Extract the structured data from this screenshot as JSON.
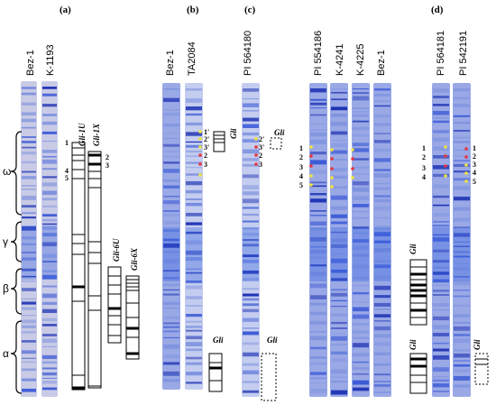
{
  "panels": {
    "a": "(a)",
    "b": "(b)",
    "c": "(c)",
    "d": "(d)"
  },
  "lanes": {
    "a1": "Bez-1",
    "a2": "K-1193",
    "b1": "Bez-1",
    "b2": "TA2084",
    "c1": "PI 564180",
    "c2": "PI 554186",
    "c3": "K-4241",
    "c4": "K-4225",
    "c5": "Bez-1",
    "d1": "PI 564181",
    "d2": "PI 542191"
  },
  "regions": {
    "omega": "ω",
    "gamma": "γ",
    "beta": "β",
    "alpha": "α"
  },
  "gli": {
    "g1u": "Gli-1U",
    "g1x": "Gli-1X",
    "g6u": "Gli-6U",
    "g6x": "Gli-6X",
    "b_top": "Gli",
    "b_bot": "Gli",
    "c_top": "Gli",
    "c_bot": "Gli",
    "d_lt": "Gli",
    "d_lb": "Gli",
    "d_r": "Gli"
  },
  "nums": {
    "a": [
      "1",
      "4",
      "5",
      "2",
      "3"
    ],
    "b": [
      "1'",
      "2'",
      "3'",
      "2",
      "3"
    ],
    "c": [
      "2'",
      "3'",
      "2",
      "3"
    ],
    "c2": [
      "1",
      "2",
      "3",
      "4",
      "5"
    ],
    "d": [
      "1",
      "2",
      "3",
      "4"
    ],
    "d2": [
      "1",
      "2",
      "3",
      "4",
      "5"
    ]
  },
  "colors": {
    "gel_background": "#eceff8",
    "band_blue": "#2846c8",
    "band_violet": "#5a3fb4",
    "marker_yellow": "#f2e43a",
    "marker_red": "#e8343a"
  }
}
